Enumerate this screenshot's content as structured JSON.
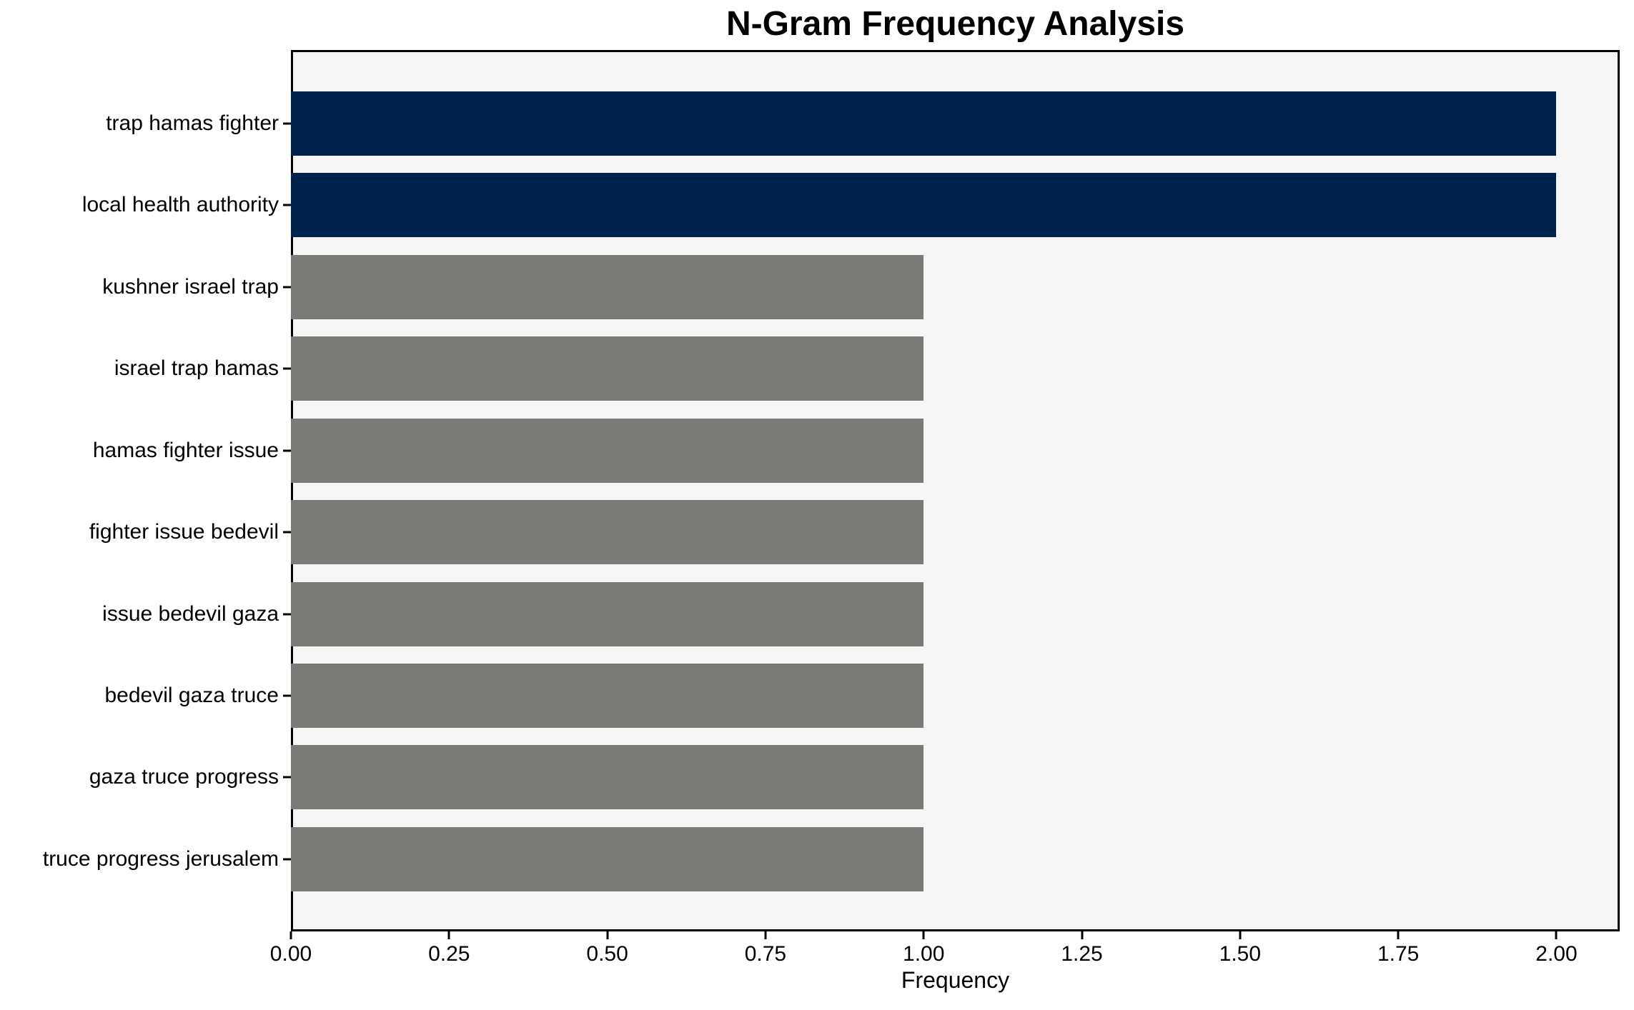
{
  "chart_data": {
    "type": "bar",
    "orientation": "horizontal",
    "title": "N-Gram Frequency Analysis",
    "xlabel": "Frequency",
    "ylabel": "",
    "categories": [
      "trap hamas fighter",
      "local health authority",
      "kushner israel trap",
      "israel trap hamas",
      "hamas fighter issue",
      "fighter issue bedevil",
      "issue bedevil gaza",
      "bedevil gaza truce",
      "gaza truce progress",
      "truce progress jerusalem"
    ],
    "values": [
      2,
      2,
      1,
      1,
      1,
      1,
      1,
      1,
      1,
      1
    ],
    "bar_colors": [
      "#00234d",
      "#00234d",
      "#7a7a77",
      "#7a7a77",
      "#7a7a77",
      "#7a7a77",
      "#7a7a77",
      "#7a7a77",
      "#7a7a77",
      "#7a7a77"
    ],
    "xlim": [
      0,
      2.1
    ],
    "xticks": [
      {
        "value": 0.0,
        "label": "0.00"
      },
      {
        "value": 0.25,
        "label": "0.25"
      },
      {
        "value": 0.5,
        "label": "0.50"
      },
      {
        "value": 0.75,
        "label": "0.75"
      },
      {
        "value": 1.0,
        "label": "1.00"
      },
      {
        "value": 1.25,
        "label": "1.25"
      },
      {
        "value": 1.5,
        "label": "1.50"
      },
      {
        "value": 1.75,
        "label": "1.75"
      },
      {
        "value": 2.0,
        "label": "2.00"
      }
    ],
    "grid": false,
    "legend": null,
    "colors": {
      "highlight_bar": "#00234d",
      "default_bar": "#7a7a77",
      "plot_background": "#f6f6f6",
      "figure_background": "#ffffff",
      "axis_border": "#000000",
      "text": "#000000"
    }
  }
}
